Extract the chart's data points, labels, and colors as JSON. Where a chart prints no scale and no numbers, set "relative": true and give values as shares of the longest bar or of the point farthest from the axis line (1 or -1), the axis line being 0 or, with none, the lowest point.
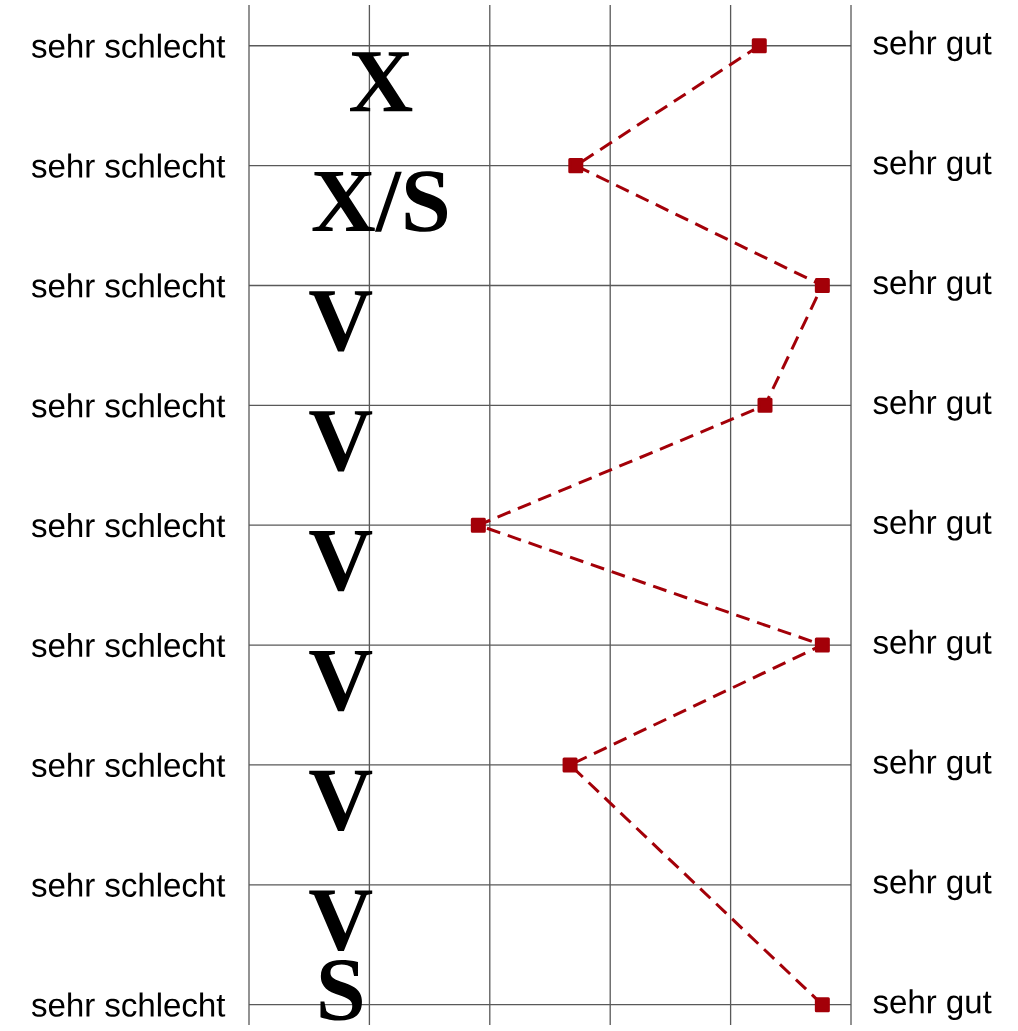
{
  "chart_data": {
    "type": "line",
    "orientation": "horizontal",
    "relative": true,
    "categories": [
      "sehr schlecht",
      "sehr schlecht",
      "sehr schlecht",
      "sehr schlecht",
      "sehr schlecht",
      "sehr schlecht",
      "sehr schlecht",
      "sehr schlecht",
      "sehr schlecht"
    ],
    "y2_categories": [
      "sehr gut",
      "sehr gut",
      "sehr gut",
      "sehr gut",
      "sehr gut",
      "sehr gut",
      "sehr gut",
      "sehr gut",
      "sehr gut"
    ],
    "values": [
      0.89,
      0.57,
      1,
      0.9,
      0.4,
      1,
      0.56,
      null,
      1
    ],
    "color": "#a30008",
    "marker": "square",
    "line_style": "dashed",
    "grid": true,
    "annotations": [
      "X",
      "X/S",
      "V",
      "V",
      "V",
      "V",
      "V",
      "V",
      "S"
    ]
  }
}
